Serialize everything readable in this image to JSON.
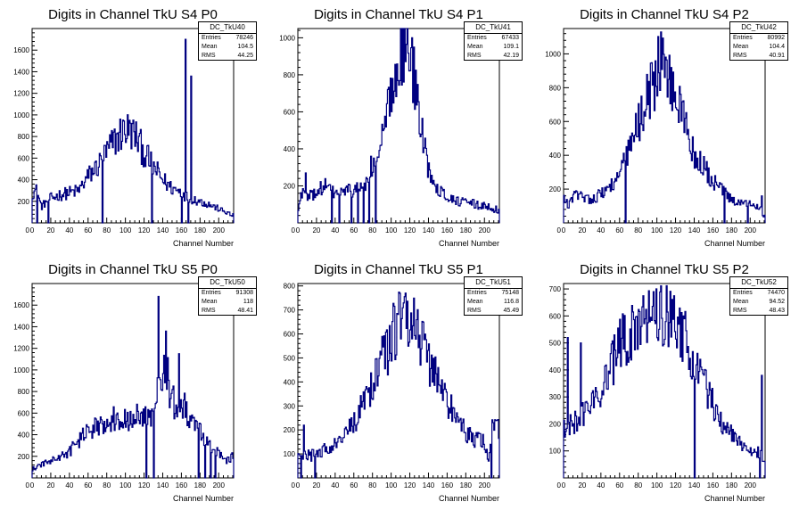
{
  "x_axis_label": "Channel Number",
  "stat_labels": {
    "entries": "Entries",
    "mean": "Mean",
    "rms": "RMS"
  },
  "line_color": "#000080",
  "chart_data": [
    {
      "type": "histogram",
      "title": "Digits in Channel TkU S4 P0",
      "xlabel": "Channel Number",
      "xlim": [
        0,
        216
      ],
      "ylim": [
        0,
        1800
      ],
      "xticks": [
        0,
        20,
        40,
        60,
        80,
        100,
        120,
        140,
        160,
        180,
        200
      ],
      "yticks": [
        200,
        400,
        600,
        800,
        1000,
        1200,
        1400,
        1600
      ],
      "stats": {
        "name": "DC_TkU40",
        "entries": "78246",
        "mean": "104.5",
        "rms": "44.25"
      },
      "profile": [
        [
          0,
          280
        ],
        [
          5,
          300
        ],
        [
          10,
          150
        ],
        [
          18,
          220
        ],
        [
          30,
          260
        ],
        [
          40,
          280
        ],
        [
          50,
          300
        ],
        [
          60,
          430
        ],
        [
          70,
          520
        ],
        [
          80,
          650
        ],
        [
          90,
          780
        ],
        [
          100,
          870
        ],
        [
          110,
          820
        ],
        [
          120,
          650
        ],
        [
          130,
          520
        ],
        [
          140,
          400
        ],
        [
          150,
          320
        ],
        [
          160,
          290
        ],
        [
          166,
          240
        ],
        [
          170,
          230
        ],
        [
          180,
          200
        ],
        [
          190,
          170
        ],
        [
          200,
          130
        ],
        [
          210,
          90
        ],
        [
          216,
          60
        ]
      ],
      "spikes": [
        [
          164,
          1700
        ],
        [
          170,
          1360
        ],
        [
          5,
          0
        ],
        [
          17,
          0
        ],
        [
          75,
          0
        ],
        [
          128,
          0
        ],
        [
          160,
          0
        ],
        [
          167,
          0
        ]
      ]
    },
    {
      "type": "histogram",
      "title": "Digits in Channel TkU S4 P1",
      "xlabel": "Channel Number",
      "xlim": [
        0,
        216
      ],
      "ylim": [
        0,
        1050
      ],
      "xticks": [
        0,
        20,
        40,
        60,
        80,
        100,
        120,
        140,
        160,
        180,
        200
      ],
      "yticks": [
        200,
        400,
        600,
        800,
        1000
      ],
      "stats": {
        "name": "DC_TkU41",
        "entries": "67433",
        "mean": "109.1",
        "rms": "42.19"
      },
      "profile": [
        [
          0,
          60
        ],
        [
          5,
          180
        ],
        [
          10,
          130
        ],
        [
          20,
          170
        ],
        [
          30,
          200
        ],
        [
          40,
          160
        ],
        [
          50,
          170
        ],
        [
          60,
          180
        ],
        [
          70,
          190
        ],
        [
          80,
          280
        ],
        [
          85,
          350
        ],
        [
          90,
          430
        ],
        [
          95,
          560
        ],
        [
          100,
          690
        ],
        [
          105,
          840
        ],
        [
          110,
          930
        ],
        [
          115,
          960
        ],
        [
          120,
          900
        ],
        [
          125,
          780
        ],
        [
          130,
          580
        ],
        [
          135,
          420
        ],
        [
          140,
          300
        ],
        [
          150,
          190
        ],
        [
          160,
          140
        ],
        [
          170,
          120
        ],
        [
          180,
          110
        ],
        [
          190,
          100
        ],
        [
          200,
          90
        ],
        [
          210,
          80
        ],
        [
          216,
          60
        ]
      ],
      "spikes": [
        [
          8,
          270
        ],
        [
          78,
          360
        ],
        [
          36,
          0
        ],
        [
          44,
          0
        ],
        [
          57,
          0
        ],
        [
          64,
          0
        ],
        [
          70,
          0
        ],
        [
          76,
          0
        ],
        [
          83,
          0
        ]
      ]
    },
    {
      "type": "histogram",
      "title": "Digits in Channel TkU S4 P2",
      "xlabel": "Channel Number",
      "xlim": [
        0,
        216
      ],
      "ylim": [
        0,
        1150
      ],
      "xticks": [
        0,
        20,
        40,
        60,
        80,
        100,
        120,
        140,
        160,
        180,
        200
      ],
      "yticks": [
        200,
        400,
        600,
        800,
        1000
      ],
      "stats": {
        "name": "DC_TkU42",
        "entries": "80992",
        "mean": "104.4",
        "rms": "40.91"
      },
      "profile": [
        [
          0,
          150
        ],
        [
          5,
          100
        ],
        [
          10,
          160
        ],
        [
          20,
          160
        ],
        [
          30,
          140
        ],
        [
          40,
          170
        ],
        [
          50,
          220
        ],
        [
          60,
          280
        ],
        [
          70,
          420
        ],
        [
          80,
          580
        ],
        [
          90,
          760
        ],
        [
          100,
          880
        ],
        [
          105,
          960
        ],
        [
          110,
          900
        ],
        [
          120,
          750
        ],
        [
          130,
          600
        ],
        [
          140,
          400
        ],
        [
          150,
          330
        ],
        [
          160,
          240
        ],
        [
          170,
          200
        ],
        [
          180,
          130
        ],
        [
          190,
          110
        ],
        [
          200,
          120
        ],
        [
          210,
          100
        ],
        [
          216,
          40
        ]
      ],
      "spikes": [
        [
          104,
          1130
        ],
        [
          212,
          160
        ],
        [
          66,
          0
        ],
        [
          172,
          0
        ],
        [
          197,
          0
        ]
      ]
    },
    {
      "type": "histogram",
      "title": "Digits in Channel TkU S5 P0",
      "xlabel": "Channel Number",
      "xlim": [
        0,
        216
      ],
      "ylim": [
        0,
        1800
      ],
      "xticks": [
        0,
        20,
        40,
        60,
        80,
        100,
        120,
        140,
        160,
        180,
        200
      ],
      "yticks": [
        200,
        400,
        600,
        800,
        1000,
        1200,
        1400,
        1600
      ],
      "stats": {
        "name": "DC_TkU50",
        "entries": "91308",
        "mean": "118",
        "rms": "48.41"
      },
      "profile": [
        [
          0,
          80
        ],
        [
          10,
          120
        ],
        [
          20,
          160
        ],
        [
          30,
          190
        ],
        [
          40,
          240
        ],
        [
          50,
          350
        ],
        [
          60,
          420
        ],
        [
          70,
          480
        ],
        [
          80,
          540
        ],
        [
          90,
          550
        ],
        [
          100,
          560
        ],
        [
          110,
          560
        ],
        [
          120,
          560
        ],
        [
          125,
          540
        ],
        [
          130,
          560
        ],
        [
          135,
          900
        ],
        [
          140,
          1000
        ],
        [
          145,
          950
        ],
        [
          150,
          700
        ],
        [
          160,
          700
        ],
        [
          170,
          550
        ],
        [
          180,
          420
        ],
        [
          190,
          300
        ],
        [
          200,
          250
        ],
        [
          205,
          150
        ],
        [
          216,
          200
        ]
      ],
      "spikes": [
        [
          135,
          1680
        ],
        [
          143,
          1360
        ],
        [
          157,
          1150
        ],
        [
          130,
          0
        ],
        [
          122,
          0
        ],
        [
          178,
          0
        ],
        [
          185,
          0
        ],
        [
          191,
          0
        ],
        [
          196,
          0
        ]
      ]
    },
    {
      "type": "histogram",
      "title": "Digits in Channel TkU S5 P1",
      "xlabel": "Channel Number",
      "xlim": [
        0,
        216
      ],
      "ylim": [
        0,
        810
      ],
      "xticks": [
        0,
        20,
        40,
        60,
        80,
        100,
        120,
        140,
        160,
        180,
        200
      ],
      "yticks": [
        100,
        200,
        300,
        400,
        500,
        600,
        700,
        800
      ],
      "stats": {
        "name": "DC_TkU51",
        "entries": "75148",
        "mean": "116.8",
        "rms": "45.49"
      },
      "profile": [
        [
          0,
          100
        ],
        [
          10,
          90
        ],
        [
          20,
          100
        ],
        [
          30,
          120
        ],
        [
          40,
          140
        ],
        [
          50,
          170
        ],
        [
          60,
          230
        ],
        [
          70,
          300
        ],
        [
          80,
          400
        ],
        [
          90,
          480
        ],
        [
          100,
          580
        ],
        [
          110,
          680
        ],
        [
          115,
          720
        ],
        [
          120,
          690
        ],
        [
          130,
          600
        ],
        [
          140,
          500
        ],
        [
          150,
          410
        ],
        [
          160,
          320
        ],
        [
          170,
          250
        ],
        [
          180,
          190
        ],
        [
          190,
          160
        ],
        [
          200,
          150
        ],
        [
          205,
          80
        ],
        [
          210,
          250
        ],
        [
          216,
          200
        ]
      ],
      "spikes": [
        [
          6,
          220
        ],
        [
          115,
          770
        ],
        [
          3,
          0
        ],
        [
          18,
          0
        ],
        [
          207,
          0
        ]
      ]
    },
    {
      "type": "histogram",
      "title": "Digits in Channel TkU S5 P2",
      "xlabel": "Channel Number",
      "xlim": [
        0,
        216
      ],
      "ylim": [
        0,
        720
      ],
      "xticks": [
        0,
        20,
        40,
        60,
        80,
        100,
        120,
        140,
        160,
        180,
        200
      ],
      "yticks": [
        100,
        200,
        300,
        400,
        500,
        600,
        700
      ],
      "stats": {
        "name": "DC_TkU52",
        "entries": "74470",
        "mean": "94.52",
        "rms": "48.43"
      },
      "profile": [
        [
          0,
          180
        ],
        [
          10,
          200
        ],
        [
          20,
          230
        ],
        [
          30,
          280
        ],
        [
          40,
          330
        ],
        [
          50,
          400
        ],
        [
          60,
          480
        ],
        [
          70,
          540
        ],
        [
          80,
          590
        ],
        [
          90,
          620
        ],
        [
          100,
          630
        ],
        [
          110,
          610
        ],
        [
          120,
          580
        ],
        [
          130,
          520
        ],
        [
          140,
          440
        ],
        [
          150,
          350
        ],
        [
          160,
          280
        ],
        [
          170,
          210
        ],
        [
          180,
          160
        ],
        [
          190,
          130
        ],
        [
          200,
          110
        ],
        [
          210,
          90
        ],
        [
          216,
          40
        ]
      ],
      "spikes": [
        [
          18,
          500
        ],
        [
          96,
          690
        ],
        [
          4,
          520
        ],
        [
          140,
          0
        ],
        [
          212,
          380
        ],
        [
          210,
          0
        ]
      ]
    }
  ]
}
